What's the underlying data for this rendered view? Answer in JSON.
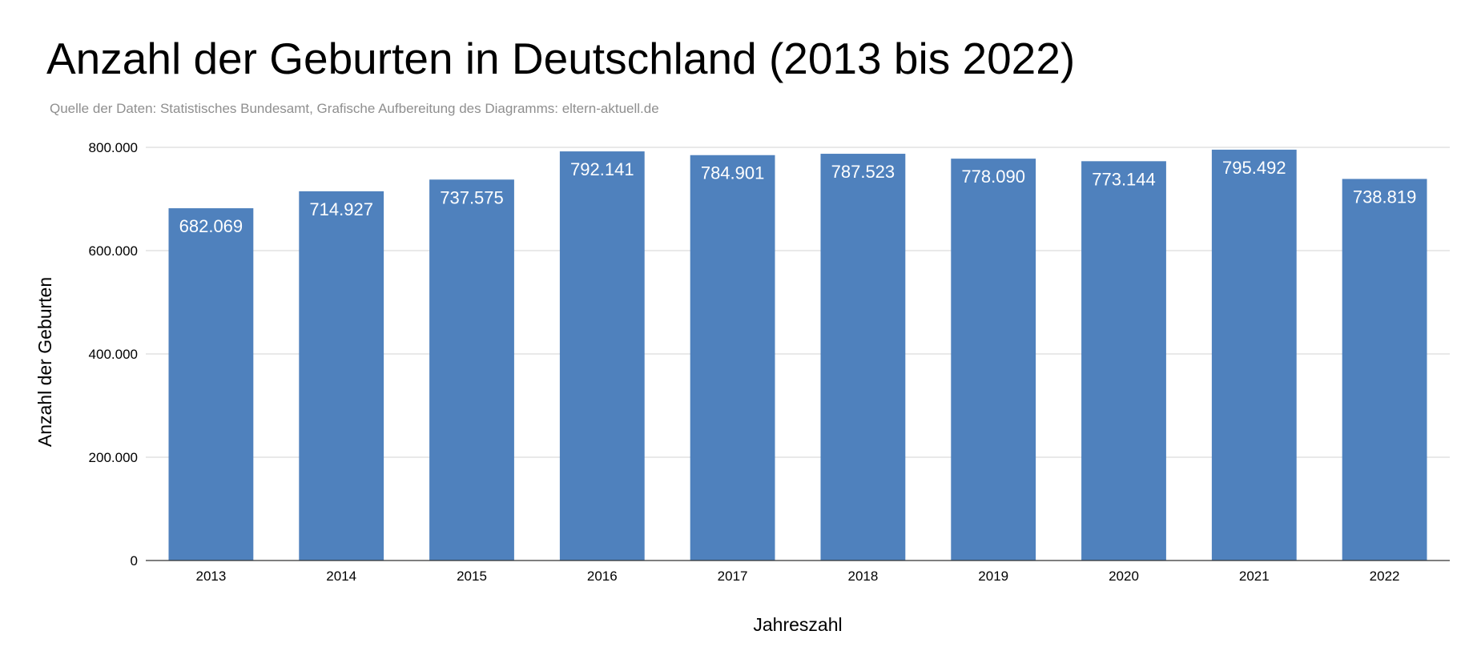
{
  "chart_data": {
    "type": "bar",
    "title": "Anzahl der Geburten in Deutschland (2013 bis 2022)",
    "subtitle": "Quelle der Daten: Statistisches Bundesamt, Grafische Aufbereitung des Diagramms: eltern-aktuell.de",
    "xlabel": "Jahreszahl",
    "ylabel": "Anzahl der Geburten",
    "categories": [
      "2013",
      "2014",
      "2015",
      "2016",
      "2017",
      "2018",
      "2019",
      "2020",
      "2021",
      "2022"
    ],
    "values": [
      682069,
      714927,
      737575,
      792141,
      784901,
      787523,
      778090,
      773144,
      795492,
      738819
    ],
    "data_labels": [
      "682.069",
      "714.927",
      "737.575",
      "792.141",
      "784.901",
      "787.523",
      "778.090",
      "773.144",
      "795.492",
      "738.819"
    ],
    "ylim": [
      0,
      800000
    ],
    "yticks": [
      0,
      200000,
      400000,
      600000,
      800000
    ],
    "ytick_labels": [
      "0",
      "200.000",
      "400.000",
      "600.000",
      "800.000"
    ],
    "grid": true,
    "legend": "none",
    "bar_color": "#4f81bd",
    "data_label_color": "#ffffff"
  }
}
